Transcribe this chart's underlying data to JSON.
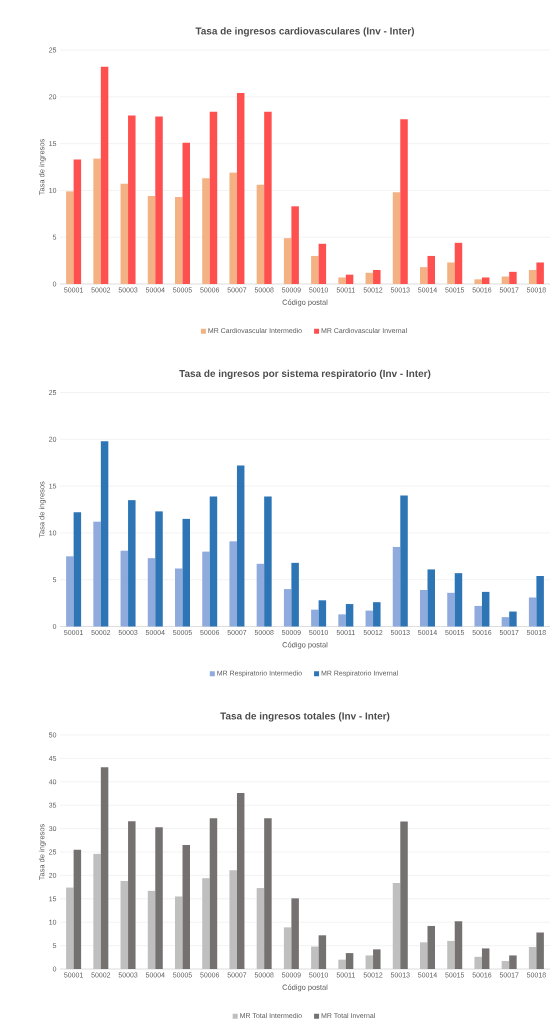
{
  "chart_data": [
    {
      "type": "bar",
      "title": "Tasa de ingresos cardiovasculares (Inv - Inter)",
      "xlabel": "Código postal",
      "ylabel": "Tasa de ingresos",
      "categories": [
        "50001",
        "50002",
        "50003",
        "50004",
        "50005",
        "50006",
        "50007",
        "50008",
        "50009",
        "50010",
        "50011",
        "50012",
        "50013",
        "50014",
        "50015",
        "50016",
        "50017",
        "50018"
      ],
      "series": [
        {
          "name": "MR Cardiovascular Intermedio",
          "color": "#f4b183",
          "values": [
            9.9,
            13.4,
            10.7,
            9.4,
            9.3,
            11.3,
            11.9,
            10.6,
            4.9,
            3.0,
            0.7,
            1.2,
            9.8,
            1.8,
            2.3,
            0.5,
            0.8,
            1.5
          ]
        },
        {
          "name": "MR Cardiovascular Invernal",
          "color": "#ff5050",
          "values": [
            13.3,
            23.2,
            18.0,
            17.9,
            15.1,
            18.4,
            20.4,
            18.4,
            8.3,
            4.3,
            1.0,
            1.5,
            17.6,
            3.0,
            4.4,
            0.7,
            1.3,
            2.3
          ]
        }
      ],
      "ylim": [
        0,
        25
      ],
      "yticks": [
        0,
        5,
        10,
        15,
        20,
        25
      ],
      "grid": "y",
      "legend": "bottom"
    },
    {
      "type": "bar",
      "title": "Tasa de ingresos por sistema respiratorio (Inv - Inter)",
      "xlabel": "Código postal",
      "ylabel": "Tasa de ingresos",
      "categories": [
        "50001",
        "50002",
        "50003",
        "50004",
        "50005",
        "50006",
        "50007",
        "50008",
        "50009",
        "50010",
        "50011",
        "50012",
        "50013",
        "50014",
        "50015",
        "50016",
        "50017",
        "50018"
      ],
      "series": [
        {
          "name": "MR Respiratorio Intermedio",
          "color": "#8faadc",
          "values": [
            7.5,
            11.2,
            8.1,
            7.3,
            6.2,
            8.0,
            9.1,
            6.7,
            4.0,
            1.8,
            1.3,
            1.7,
            8.5,
            3.9,
            3.6,
            2.2,
            1.0,
            3.1
          ]
        },
        {
          "name": "MR Respiratorio Invernal",
          "color": "#2e75b6",
          "values": [
            12.2,
            19.8,
            13.5,
            12.3,
            11.5,
            13.9,
            17.2,
            13.9,
            6.8,
            2.8,
            2.4,
            2.6,
            14.0,
            6.1,
            5.7,
            3.7,
            1.6,
            5.4
          ]
        }
      ],
      "ylim": [
        0,
        25
      ],
      "yticks": [
        0,
        5,
        10,
        15,
        20,
        25
      ],
      "grid": "y",
      "legend": "bottom"
    },
    {
      "type": "bar",
      "title": "Tasa de ingresos totales (Inv - Inter)",
      "xlabel": "Código postal",
      "ylabel": "Tasa de ingresos",
      "categories": [
        "50001",
        "50002",
        "50003",
        "50004",
        "50005",
        "50006",
        "50007",
        "50008",
        "50009",
        "50010",
        "50011",
        "50012",
        "50013",
        "50014",
        "50015",
        "50016",
        "50017",
        "50018"
      ],
      "series": [
        {
          "name": "MR Total Intermedio",
          "color": "#bfbfbf",
          "values": [
            17.4,
            24.6,
            18.8,
            16.7,
            15.5,
            19.4,
            21.1,
            17.3,
            8.9,
            4.8,
            2.0,
            2.9,
            18.4,
            5.7,
            6.0,
            2.6,
            1.7,
            4.7
          ]
        },
        {
          "name": "MR Total Invernal",
          "color": "#767171",
          "values": [
            25.5,
            43.1,
            31.6,
            30.3,
            26.5,
            32.2,
            37.6,
            32.2,
            15.1,
            7.2,
            3.4,
            4.2,
            31.5,
            9.2,
            10.2,
            4.4,
            2.9,
            7.8
          ]
        }
      ],
      "ylim": [
        0,
        50
      ],
      "yticks": [
        0,
        5,
        10,
        15,
        20,
        25,
        30,
        35,
        40,
        45,
        50
      ],
      "grid": "y",
      "legend": "bottom"
    }
  ]
}
